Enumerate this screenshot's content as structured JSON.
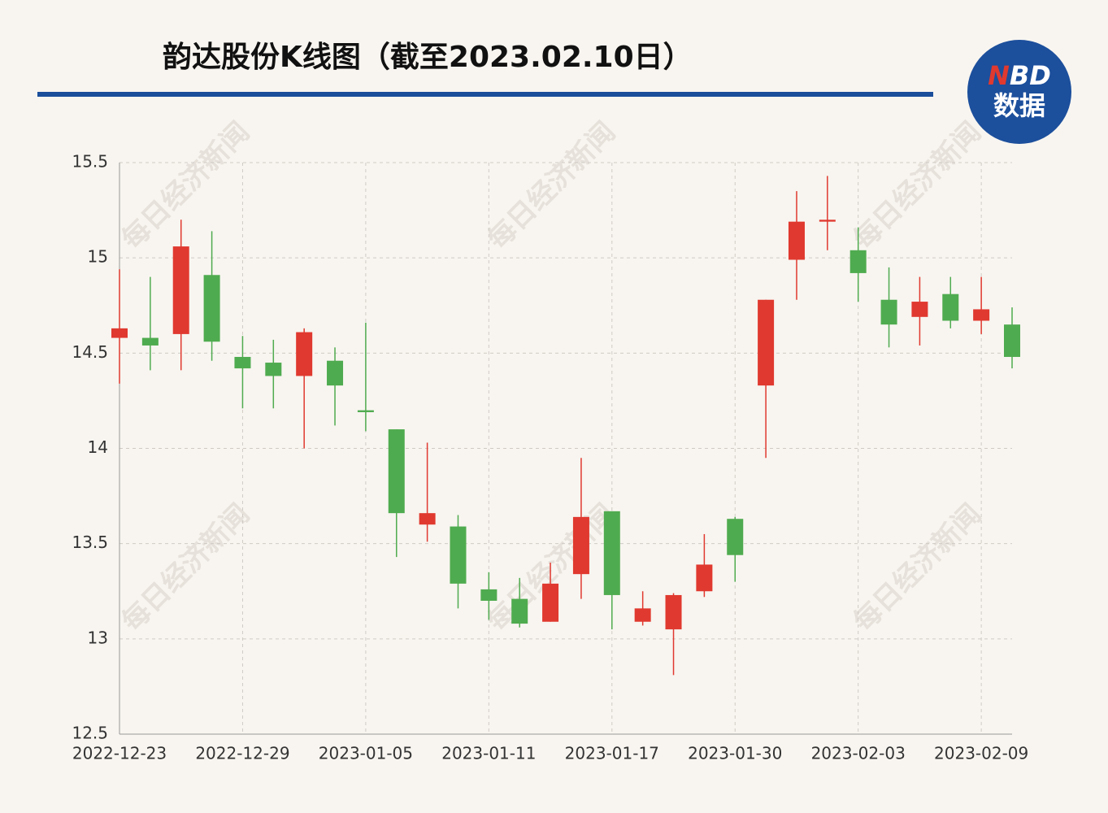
{
  "chart_data": {
    "type": "candlestick",
    "title": "韵达股份K线图（截至2023.02.10日）",
    "logo": {
      "n": "N",
      "bd": "BD",
      "sub": "数据"
    },
    "watermark": "每日经济新闻",
    "categories": [
      "2022-12-23",
      null,
      null,
      null,
      "2022-12-29",
      null,
      null,
      null,
      "2023-01-05",
      null,
      null,
      null,
      "2023-01-11",
      null,
      null,
      null,
      "2023-01-17",
      null,
      null,
      null,
      "2023-01-30",
      null,
      null,
      null,
      "2023-02-03",
      null,
      null,
      null,
      "2023-02-09",
      null
    ],
    "open": [
      14.58,
      14.58,
      14.6,
      14.91,
      14.48,
      14.45,
      14.38,
      14.46,
      14.2,
      14.1,
      13.6,
      13.59,
      13.26,
      13.21,
      13.09,
      13.34,
      13.67,
      13.09,
      13.05,
      13.25,
      13.63,
      14.33,
      14.99,
      15.19,
      15.04,
      14.78,
      14.69,
      14.81,
      14.67,
      14.65
    ],
    "high": [
      14.94,
      14.9,
      15.2,
      15.14,
      14.59,
      14.57,
      14.63,
      14.53,
      14.66,
      14.1,
      14.03,
      13.65,
      13.35,
      13.32,
      13.4,
      13.95,
      13.67,
      13.25,
      13.24,
      13.55,
      13.64,
      14.78,
      15.35,
      15.43,
      15.16,
      14.95,
      14.9,
      14.9,
      14.9,
      14.74
    ],
    "low": [
      14.34,
      14.41,
      14.41,
      14.46,
      14.21,
      14.21,
      14.0,
      14.12,
      14.09,
      13.43,
      13.51,
      13.16,
      13.1,
      13.06,
      13.09,
      13.21,
      13.05,
      13.07,
      12.81,
      13.22,
      13.3,
      13.95,
      14.78,
      15.04,
      14.77,
      14.53,
      14.54,
      14.63,
      14.6,
      14.42
    ],
    "close": [
      14.63,
      14.54,
      15.06,
      14.56,
      14.42,
      14.38,
      14.61,
      14.33,
      14.19,
      13.66,
      13.66,
      13.29,
      13.2,
      13.08,
      13.29,
      13.64,
      13.23,
      13.16,
      13.23,
      13.39,
      13.44,
      14.78,
      15.19,
      15.2,
      14.92,
      14.65,
      14.77,
      14.67,
      14.73,
      14.48
    ],
    "up_color": "#e0392f",
    "down_color": "#4fab4f",
    "ylim": [
      12.5,
      15.5
    ],
    "yticks": [
      12.5,
      13,
      13.5,
      14,
      14.5,
      15,
      15.5
    ],
    "grid": true
  }
}
